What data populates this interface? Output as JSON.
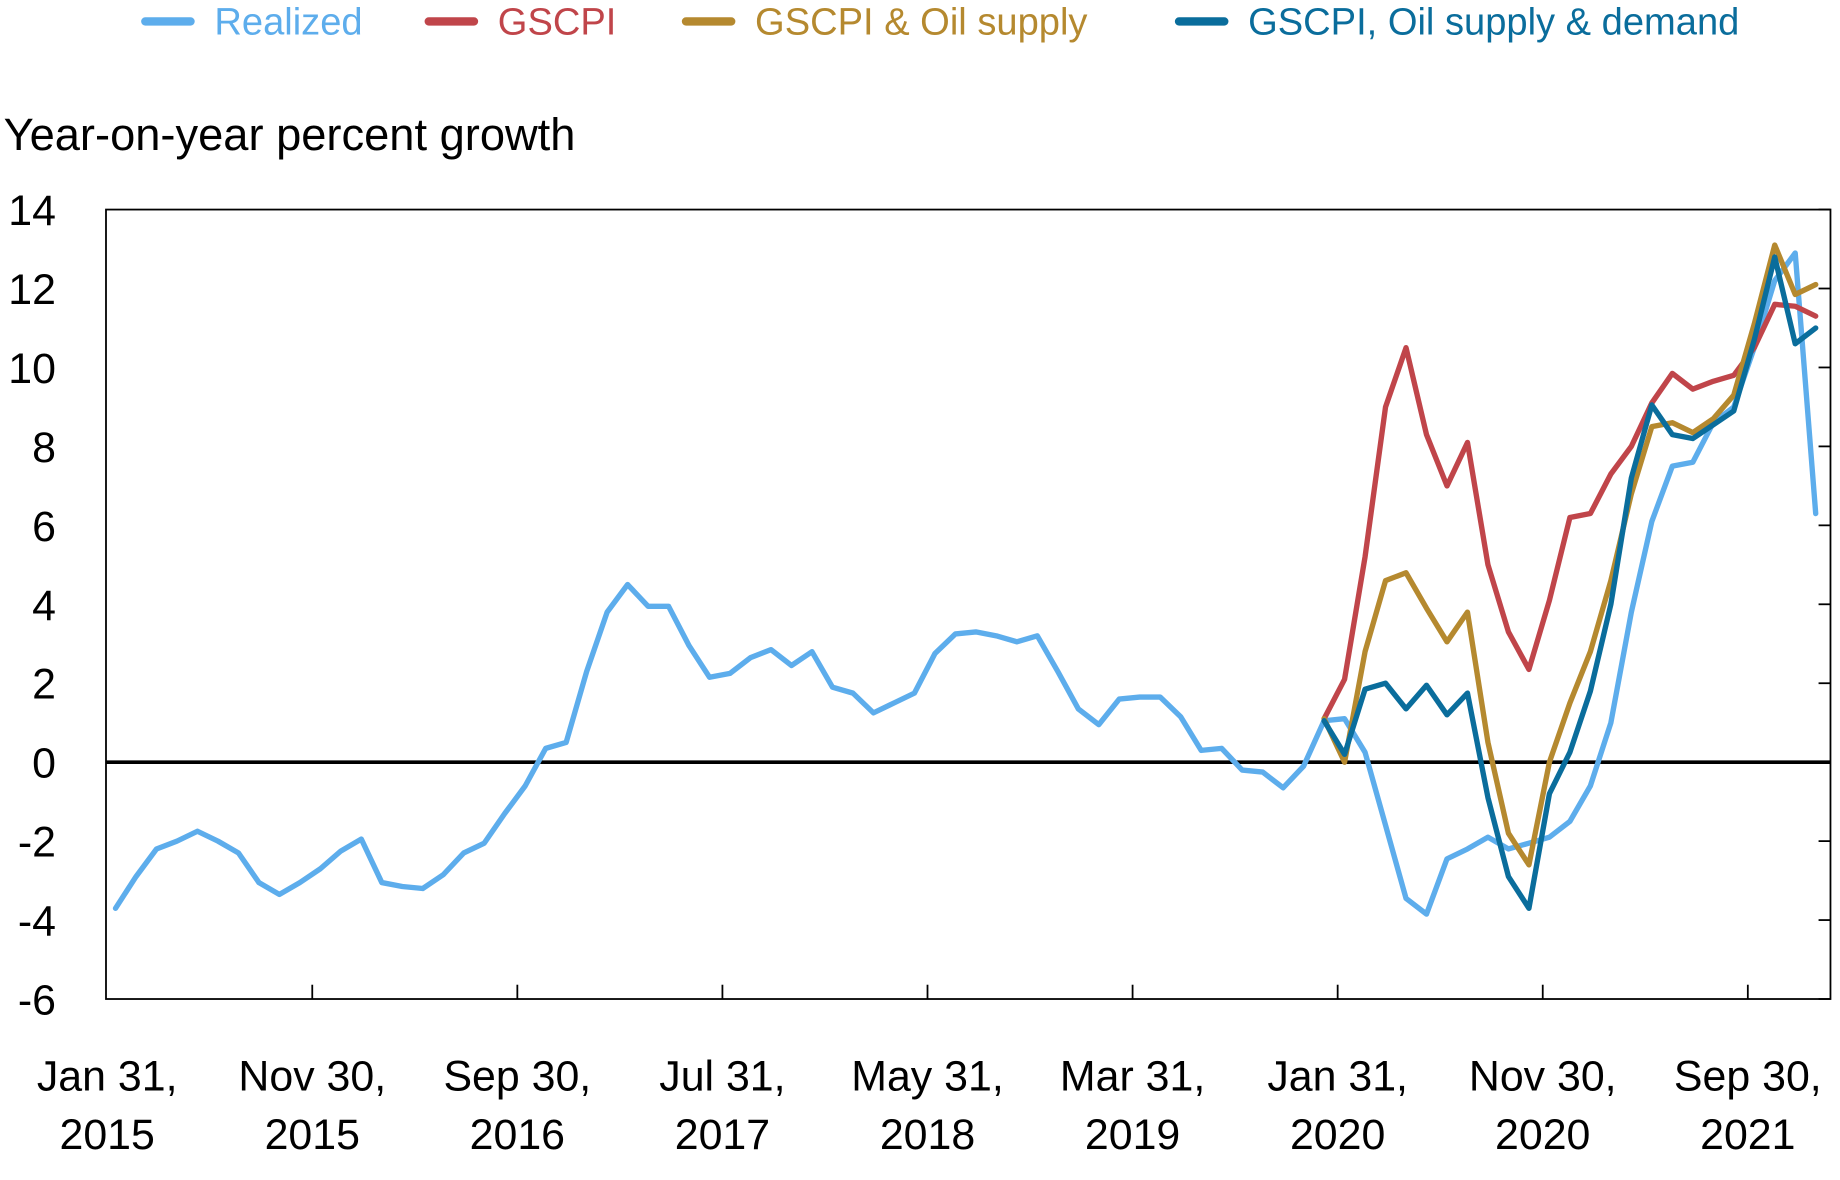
{
  "chart_data": {
    "type": "line",
    "ylabel": "Year-on-year percent growth",
    "ylim": [
      -6,
      14
    ],
    "yticks": [
      "14",
      "12",
      "10",
      "8",
      "6",
      "4",
      "2",
      "0",
      "-2",
      "-4",
      "-6"
    ],
    "ytick_values": [
      14,
      12,
      10,
      8,
      6,
      4,
      2,
      0,
      -2,
      -4,
      -6
    ],
    "xticks": [
      {
        "line1": "Jan 31,",
        "line2": "2015",
        "month_index": 0
      },
      {
        "line1": "Nov 30,",
        "line2": "2015",
        "month_index": 10
      },
      {
        "line1": "Sep 30,",
        "line2": "2016",
        "month_index": 20
      },
      {
        "line1": "Jul 31,",
        "line2": "2017",
        "month_index": 30
      },
      {
        "line1": "May 31,",
        "line2": "2018",
        "month_index": 40
      },
      {
        "line1": "Mar 31,",
        "line2": "2019",
        "month_index": 50
      },
      {
        "line1": "Jan 31,",
        "line2": "2020",
        "month_index": 60
      },
      {
        "line1": "Nov 30,",
        "line2": "2020",
        "month_index": 70
      },
      {
        "line1": "Sep 30,",
        "line2": "2021",
        "month_index": 80
      }
    ],
    "x_frequency": "monthly, month-end",
    "x_start": "2015-01-31",
    "legend_position": "top",
    "zero_line": true,
    "series": [
      {
        "name": "Realized",
        "color": "#5DADEC",
        "start": "2015-01-31",
        "start_index": 0,
        "values": [
          -3.7,
          -2.9,
          -2.2,
          -2.0,
          -1.75,
          -2.0,
          -2.3,
          -3.05,
          -3.35,
          -3.05,
          -2.7,
          -2.25,
          -1.95,
          -3.05,
          -3.15,
          -3.2,
          -2.85,
          -2.3,
          -2.05,
          -1.3,
          -0.6,
          0.35,
          0.5,
          2.3,
          3.8,
          4.5,
          3.95,
          3.95,
          2.95,
          2.15,
          2.25,
          2.65,
          2.85,
          2.45,
          2.8,
          1.9,
          1.75,
          1.25,
          1.5,
          1.75,
          2.75,
          3.25,
          3.3,
          3.2,
          3.05,
          3.2,
          2.3,
          1.35,
          0.95,
          1.6,
          1.65,
          1.65,
          1.15,
          0.3,
          0.35,
          -0.2,
          -0.25,
          -0.65,
          -0.1,
          1.05,
          1.1,
          0.25,
          -1.6,
          -3.45,
          -3.85,
          -2.45,
          -2.2,
          -1.9,
          -2.2,
          -2.05,
          -1.9,
          -1.5,
          -0.6,
          1.0,
          3.8,
          6.1,
          7.5,
          7.6,
          8.6,
          9.0,
          10.5,
          12.2,
          12.9,
          6.3
        ]
      },
      {
        "name": "GSCPI",
        "color": "#C0454A",
        "start": "2019-12-31",
        "start_index": 59,
        "values": [
          1.1,
          2.1,
          5.2,
          9.0,
          10.5,
          8.3,
          7.0,
          8.1,
          5.0,
          3.3,
          2.35,
          4.1,
          6.2,
          6.3,
          7.3,
          8.0,
          9.1,
          9.85,
          9.45,
          9.65,
          9.8,
          10.5,
          11.6,
          11.55,
          11.3
        ]
      },
      {
        "name": "GSCPI & Oil supply",
        "color": "#B5892F",
        "start": "2019-12-31",
        "start_index": 59,
        "values": [
          1.1,
          0.0,
          2.8,
          4.6,
          4.8,
          3.9,
          3.05,
          3.8,
          0.5,
          -1.8,
          -2.6,
          0.0,
          1.5,
          2.8,
          4.6,
          6.8,
          8.5,
          8.6,
          8.35,
          8.7,
          9.3,
          11.1,
          13.1,
          11.85,
          12.1
        ]
      },
      {
        "name": "GSCPI, Oil supply & demand",
        "color": "#0A6D9C",
        "start": "2019-12-31",
        "start_index": 59,
        "values": [
          1.05,
          0.2,
          1.85,
          2.0,
          1.35,
          1.95,
          1.2,
          1.75,
          -0.9,
          -2.9,
          -3.7,
          -0.8,
          0.25,
          1.8,
          4.0,
          7.2,
          9.05,
          8.3,
          8.2,
          8.55,
          8.9,
          10.7,
          12.8,
          10.6,
          11.0
        ]
      }
    ]
  }
}
